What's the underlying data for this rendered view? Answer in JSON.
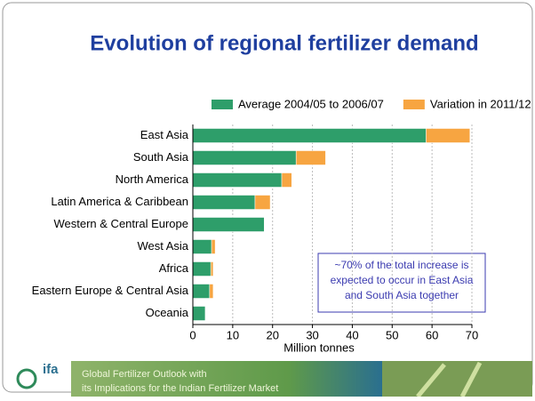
{
  "chart_data": {
    "type": "stacked-hbar",
    "title": "Evolution of regional fertilizer demand",
    "categories": [
      "East Asia",
      "South Asia",
      "North America",
      "Latin America & Caribbean",
      "Western & Central Europe",
      "West Asia",
      "Africa",
      "Eastern Europe & Central Asia",
      "Oceania"
    ],
    "series": [
      {
        "name": "Average 2004/05 to 2006/07",
        "color": "#2e9e6a",
        "values": [
          58.5,
          25.9,
          22.3,
          15.6,
          17.9,
          4.7,
          4.5,
          4.2,
          3.1
        ]
      },
      {
        "name": "Variation in 2011/12",
        "color": "#f7a541",
        "values": [
          11,
          7.4,
          2.5,
          3.8,
          0,
          0.9,
          0.6,
          0.9,
          0
        ]
      }
    ],
    "xlim": [
      0,
      70
    ],
    "xticks": [
      0,
      10,
      20,
      30,
      40,
      50,
      60,
      70
    ],
    "xlabel": "Million tonnes",
    "grid": true,
    "legend": "top",
    "annotation": [
      "~70% of the total increase is",
      "expected to occur in East Asia",
      "and South Asia together"
    ]
  },
  "footer": {
    "logo": "ifa",
    "lines": [
      "Global Fertilizer Outlook with",
      "its Implications for the Indian Fertilizer Market"
    ]
  }
}
